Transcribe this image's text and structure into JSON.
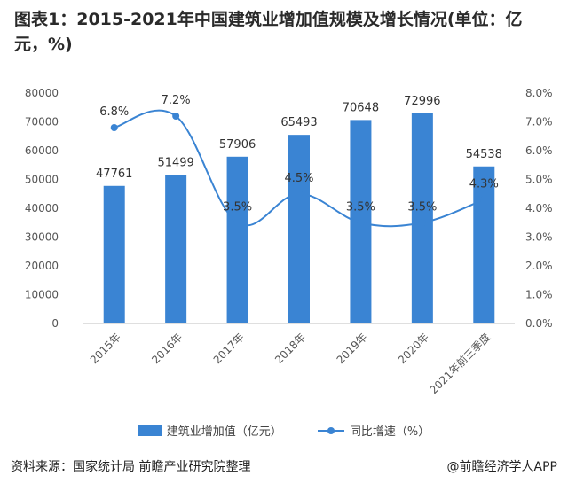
{
  "header": {
    "title": "图表1：2015-2021年中国建筑业增加值规模及增长情况(单位：亿元，%)"
  },
  "chart_data": {
    "type": "bar",
    "categories": [
      "2015年",
      "2016年",
      "2017年",
      "2018年",
      "2019年",
      "2020年",
      "2021年前三季度"
    ],
    "series": [
      {
        "name": "建筑业增加值（亿元）",
        "type": "bar",
        "axis": "left",
        "values": [
          47761,
          51499,
          57906,
          65493,
          70648,
          72996,
          54538
        ]
      },
      {
        "name": "同比增速（%）",
        "type": "line",
        "axis": "right",
        "values": [
          6.8,
          7.2,
          3.5,
          4.5,
          3.5,
          3.5,
          4.3
        ],
        "labels": [
          "6.8%",
          "7.2%",
          "3.5%",
          "4.5%",
          "3.5%",
          "3.5%",
          "4.3%"
        ]
      }
    ],
    "ylim_left": [
      0,
      80000
    ],
    "yticks_left": [
      "0",
      "10000",
      "20000",
      "30000",
      "40000",
      "50000",
      "60000",
      "70000",
      "80000"
    ],
    "ylim_right": [
      0,
      8
    ],
    "yticks_right": [
      "0.0%",
      "1.0%",
      "2.0%",
      "3.0%",
      "4.0%",
      "5.0%",
      "6.0%",
      "7.0%",
      "8.0%"
    ],
    "grid": false,
    "legend_position": "bottom",
    "colors": {
      "bar": "#3a84d3",
      "line": "#3a84d3"
    }
  },
  "legend": {
    "bar_label": "建筑业增加值（亿元）",
    "line_label": "同比增速（%）"
  },
  "footer": {
    "source": "资料来源：国家统计局 前瞻产业研究院整理",
    "brand": "@前瞻经济学人APP"
  }
}
